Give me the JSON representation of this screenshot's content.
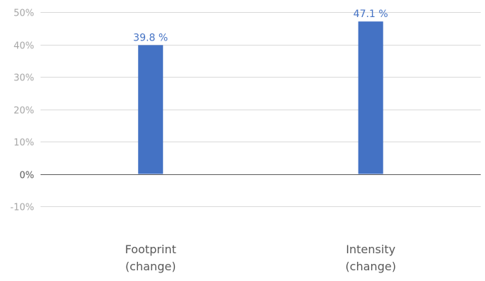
{
  "chart_data": {
    "type": "bar",
    "title": "",
    "xlabel": "",
    "ylabel": "",
    "categories": [
      [
        "Footprint",
        "(change)"
      ],
      [
        "Intensity",
        "(change)"
      ]
    ],
    "series": [
      {
        "values": [
          39.8,
          47.1
        ]
      }
    ],
    "data_labels": [
      "39.8 %",
      "47.1 %"
    ],
    "y_ticks": [
      {
        "value": -10,
        "label": "-10%"
      },
      {
        "value": 0,
        "label": "0%"
      },
      {
        "value": 10,
        "label": "10%"
      },
      {
        "value": 20,
        "label": "20%"
      },
      {
        "value": 30,
        "label": "30%"
      },
      {
        "value": 40,
        "label": "40%"
      },
      {
        "value": 50,
        "label": "50%"
      }
    ],
    "ylim": [
      -10,
      50
    ],
    "grid": true,
    "legend": "none",
    "colors": {
      "bar": "#4472c4",
      "data_label": "#4472c4",
      "gridline": "#d9d9d9",
      "zero_line": "#595959",
      "tick_label": "#a6a6a6",
      "category_label": "#595959"
    }
  }
}
